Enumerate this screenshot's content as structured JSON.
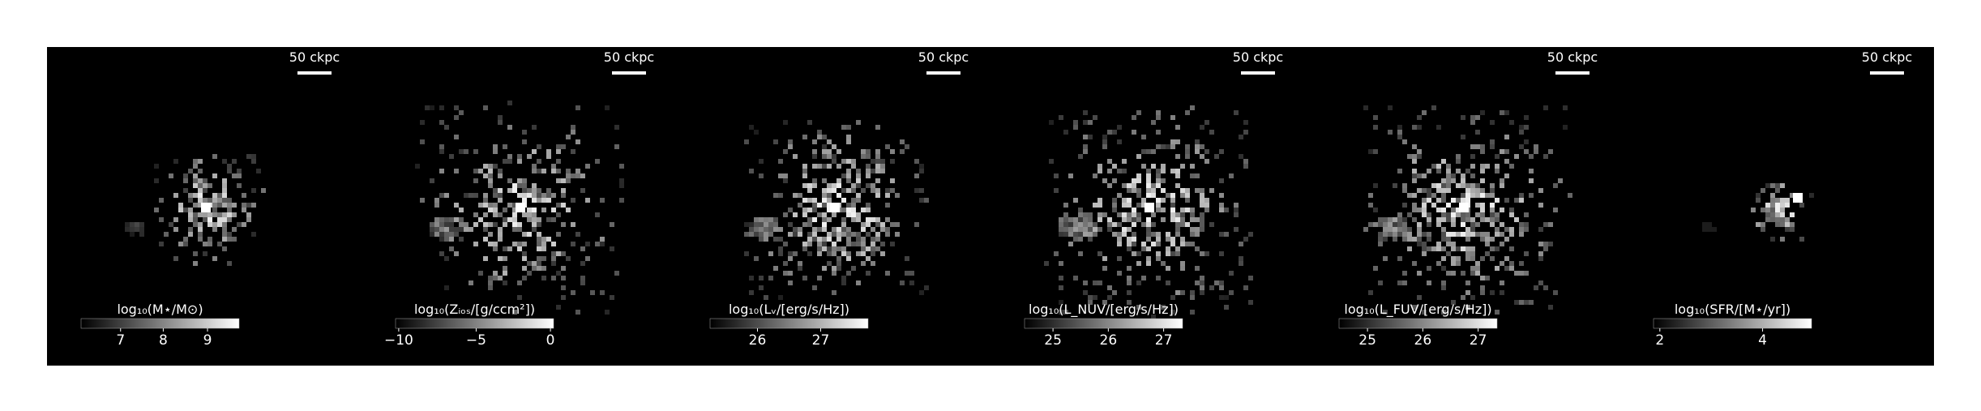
{
  "figure": {
    "background": "#ffffff",
    "panel_background": "#000000",
    "text_color": "#ffffff",
    "scale_bar_label": "50 ckpc",
    "panels": [
      {
        "id": "stellar-mass",
        "colorbar_label": "log₁₀(M⋆/M⊙)",
        "ticks": [
          "7",
          "8",
          "9"
        ],
        "tick_fractions": [
          0.25,
          0.52,
          0.8
        ],
        "core_brightness": 1.0,
        "spread": 0.45,
        "density": 0.35
      },
      {
        "id": "gas-metallicity",
        "colorbar_label": "log₁₀(Zᵢₒₛ/[g/ccm²])",
        "ticks": [
          "−10",
          "−5",
          "0"
        ],
        "tick_fractions": [
          0.02,
          0.51,
          0.98
        ],
        "core_brightness": 1.0,
        "spread": 0.85,
        "density": 0.6
      },
      {
        "id": "v-band-luminosity",
        "colorbar_label": "log₁₀(Lᵥ/[erg/s/Hz])",
        "ticks": [
          "26",
          "27"
        ],
        "tick_fractions": [
          0.3,
          0.7
        ],
        "core_brightness": 1.0,
        "spread": 0.75,
        "density": 0.7
      },
      {
        "id": "nuv-luminosity",
        "colorbar_label": "log₁₀(L_NUV/[erg/s/Hz])",
        "ticks": [
          "25",
          "26",
          "27"
        ],
        "tick_fractions": [
          0.18,
          0.53,
          0.88
        ],
        "core_brightness": 1.0,
        "spread": 0.85,
        "density": 0.8
      },
      {
        "id": "fuv-luminosity",
        "colorbar_label": "log₁₀(L_FUV/[erg/s/Hz])",
        "ticks": [
          "25",
          "26",
          "27"
        ],
        "tick_fractions": [
          0.18,
          0.53,
          0.88
        ],
        "core_brightness": 1.0,
        "spread": 0.85,
        "density": 0.8
      },
      {
        "id": "star-formation-rate",
        "colorbar_label": "log₁₀(SFR/[M⋆/yr])",
        "ticks": [
          "2",
          "4"
        ],
        "tick_fractions": [
          0.04,
          0.69
        ],
        "core_brightness": 1.0,
        "spread": 0.25,
        "density": 0.15
      }
    ]
  }
}
